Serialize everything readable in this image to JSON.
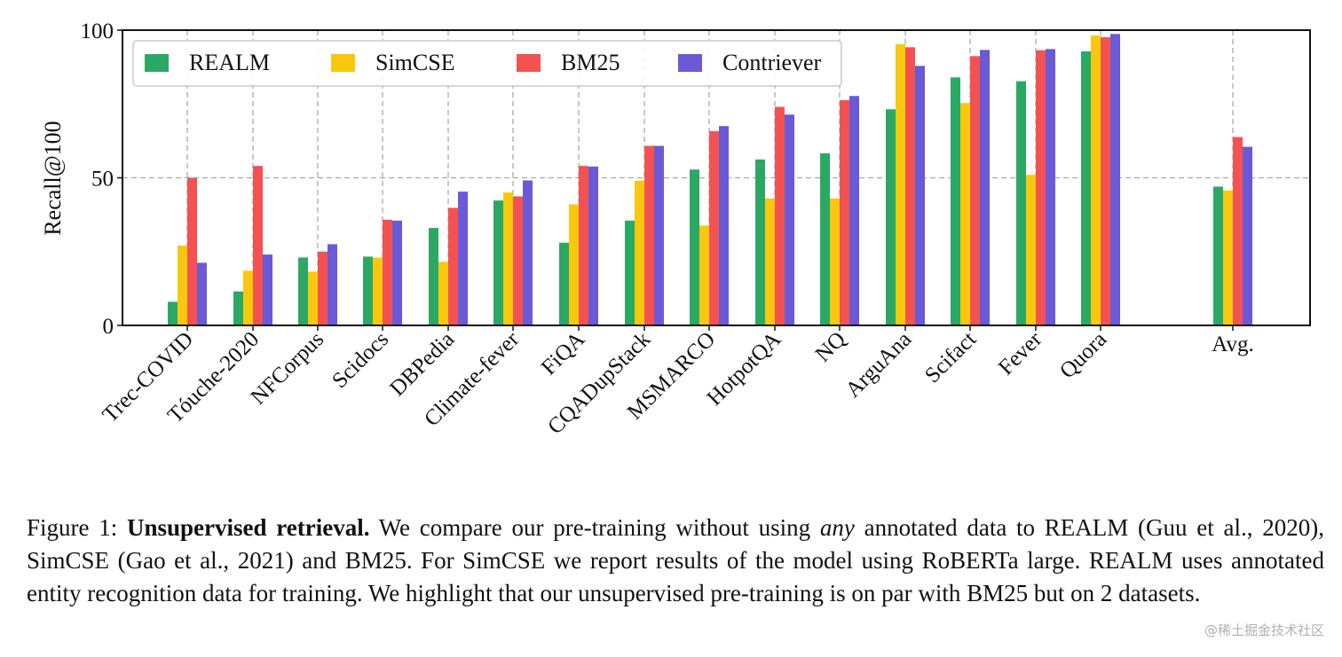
{
  "chart_data": {
    "type": "bar",
    "ylabel": "Recall@100",
    "ylim": [
      0,
      100
    ],
    "yticks": [
      0,
      50,
      100
    ],
    "grid": true,
    "legend_position": "top-left",
    "categories": [
      "Trec-COVID",
      "Tóuche-2020",
      "NFCorpus",
      "Scidocs",
      "DBPedia",
      "Climate-fever",
      "FiQA",
      "CQADupStack",
      "MSMARCO",
      "HotpotQA",
      "NQ",
      "ArguAna",
      "Scifact",
      "Fever",
      "Quora",
      "Avg."
    ],
    "series": [
      {
        "name": "REALM",
        "color": "#2ca865",
        "values": [
          8,
          11.5,
          23,
          23.3,
          33,
          42.3,
          28,
          35.5,
          52.8,
          56.2,
          58.3,
          73.2,
          84,
          82.7,
          92.8,
          47
        ]
      },
      {
        "name": "SimCSE",
        "color": "#f9c80e",
        "values": [
          27,
          18.5,
          18.2,
          23,
          21.5,
          45,
          41,
          49,
          33.8,
          43,
          43,
          95.3,
          75.3,
          51,
          98.2,
          45.7
        ]
      },
      {
        "name": "BM25",
        "color": "#f45252",
        "values": [
          50,
          54,
          25,
          35.8,
          39.8,
          43.7,
          54,
          60.8,
          65.8,
          74,
          76.3,
          94.2,
          91.2,
          93.2,
          97.6,
          63.8
        ]
      },
      {
        "name": "Contriever",
        "color": "#6a5ad6",
        "values": [
          21.2,
          24,
          27.5,
          35.5,
          45.3,
          49.1,
          53.8,
          60.8,
          67.5,
          71.4,
          77.7,
          87.9,
          93.3,
          93.6,
          98.7,
          60.5
        ]
      }
    ]
  },
  "caption": {
    "prefix": "Figure 1: ",
    "bold": "Unsupervised retrieval.",
    "part1": " We compare our pre-training without using ",
    "italic": "any",
    "part2": " annotated data to REALM (Guu et al., 2020), SimCSE (Gao et al., 2021) and BM25. For SimCSE we report results of the model using RoBERTa large. REALM uses annotated entity recognition data for training. We highlight that our unsupervised pre-training is on par with BM25 but on 2 datasets."
  },
  "watermark": "@稀土掘金技术社区"
}
